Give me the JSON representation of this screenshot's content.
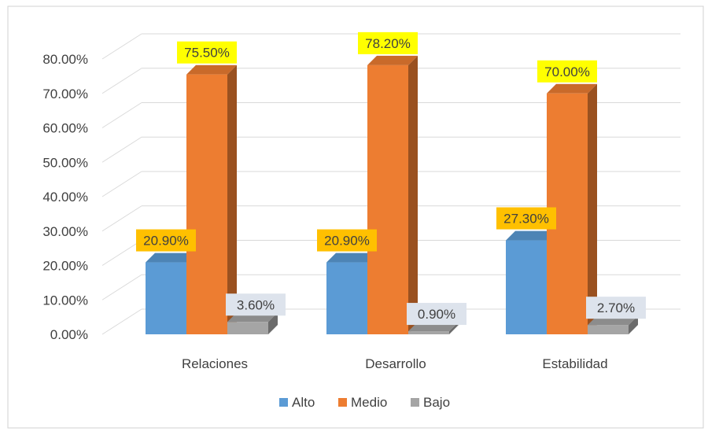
{
  "chart_data": {
    "type": "bar",
    "title": "",
    "xlabel": "",
    "ylabel": "",
    "categories": [
      "Relaciones",
      "Desarrollo",
      "Estabilidad"
    ],
    "series": [
      {
        "name": "Alto",
        "values": [
          20.9,
          20.9,
          27.3
        ],
        "labels": [
          "20.90%",
          "20.90%",
          "27.30%"
        ],
        "color": "#5B9BD5",
        "label_bg": "#FFC000"
      },
      {
        "name": "Medio",
        "values": [
          75.5,
          78.2,
          70.0
        ],
        "labels": [
          "75.50%",
          "78.20%",
          "70.00%"
        ],
        "color": "#ED7D31",
        "label_bg": "#FFFF00"
      },
      {
        "name": "Bajo",
        "values": [
          3.6,
          0.9,
          2.7
        ],
        "labels": [
          "3.60%",
          "0.90%",
          "2.70%"
        ],
        "color": "#A5A5A5",
        "label_bg": "#DDE3EC"
      }
    ],
    "ylim": [
      0,
      80
    ],
    "yticks": [
      0,
      10,
      20,
      30,
      40,
      50,
      60,
      70,
      80
    ],
    "ytick_labels": [
      "0.00%",
      "10.00%",
      "20.00%",
      "30.00%",
      "40.00%",
      "50.00%",
      "60.00%",
      "70.00%",
      "80.00%"
    ],
    "grid": true,
    "three_d": true,
    "legend_position": "bottom"
  }
}
